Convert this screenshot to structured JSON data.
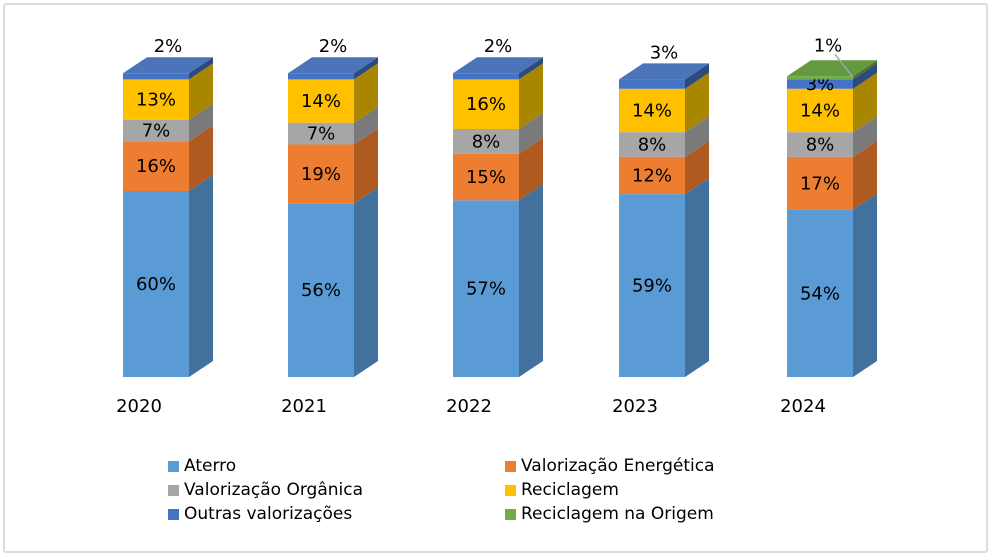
{
  "chart": {
    "frame_color": "#DCDCDC",
    "background": "#FFFFFF"
  },
  "chart_data": {
    "type": "bar",
    "variant": "3d-stacked-percent-column",
    "title": "",
    "xlabel": "",
    "ylabel": "",
    "grid": false,
    "legend_position": "bottom",
    "value_suffix": "%",
    "label_color": "#000000",
    "leader_line_color": "#A6A6A6",
    "categories": [
      "2020",
      "2021",
      "2022",
      "2023",
      "2024"
    ],
    "series": [
      {
        "name": "Aterro",
        "color": "#5B9BD5",
        "side_color": "#41719C",
        "top_color": "#6EA6DA",
        "values": [
          60,
          56,
          57,
          59,
          54
        ]
      },
      {
        "name": "Valorização Energética",
        "color": "#ED7D31",
        "side_color": "#AE5A21",
        "top_color": "#F0905A",
        "values": [
          16,
          19,
          15,
          12,
          17
        ]
      },
      {
        "name": "Valorização Orgânica",
        "color": "#A6A6A6",
        "side_color": "#7A7A7A",
        "top_color": "#B8B8B8",
        "values": [
          7,
          7,
          8,
          8,
          8
        ]
      },
      {
        "name": "Reciclagem",
        "color": "#FFC000",
        "side_color": "#A88600",
        "top_color": "#FFD34D",
        "values": [
          13,
          14,
          16,
          14,
          14
        ]
      },
      {
        "name": "Outras valorizações",
        "color": "#4472C4",
        "side_color": "#2C4B7C",
        "top_color": "#4C74B8",
        "values": [
          2,
          2,
          2,
          3,
          3
        ]
      },
      {
        "name": "Reciclagem na Origem",
        "color": "#70AD47",
        "side_color": "#4A7030",
        "top_color": "#639A3F",
        "values": [
          0,
          0,
          0,
          0,
          1
        ]
      }
    ],
    "data_labels": {
      "2020": [
        "60%",
        "16%",
        "7%",
        "13%",
        "2%"
      ],
      "2021": [
        "56%",
        "19%",
        "7%",
        "14%",
        "2%"
      ],
      "2022": [
        "57%",
        "15%",
        "8%",
        "16%",
        "2%"
      ],
      "2023": [
        "59%",
        "12%",
        "8%",
        "14%",
        "3%"
      ],
      "2024": [
        "54%",
        "17%",
        "8%",
        "14%",
        "3%",
        "1%"
      ]
    },
    "legend_columns": [
      [
        0,
        2,
        4
      ],
      [
        1,
        3,
        5
      ]
    ]
  }
}
